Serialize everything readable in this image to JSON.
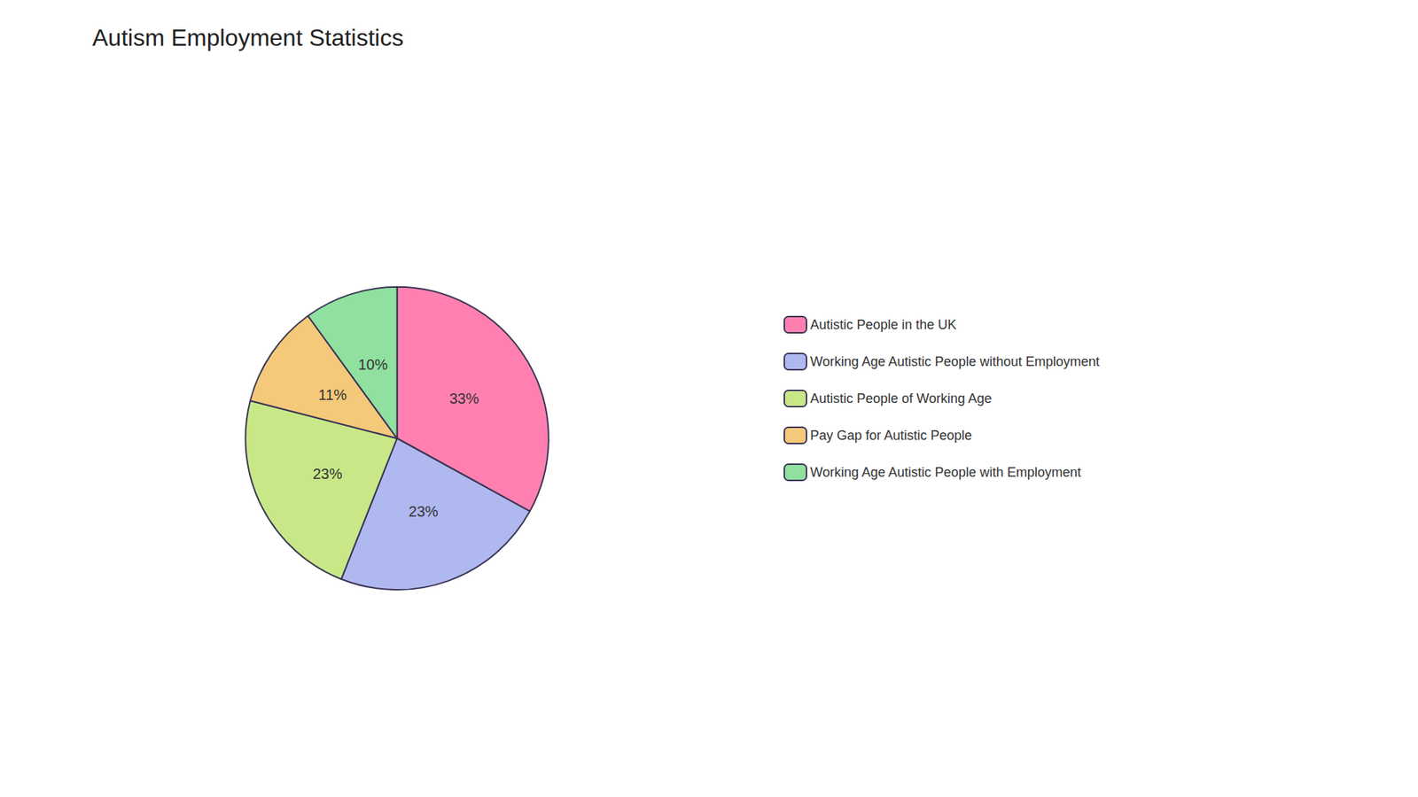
{
  "chart_data": {
    "type": "pie",
    "title": "Autism Employment Statistics",
    "categories": [
      "Autistic People in the UK",
      "Working Age Autistic People without Employment",
      "Autistic People of Working Age",
      "Pay Gap for Autistic People",
      "Working Age Autistic People with Employment"
    ],
    "values": [
      33,
      23,
      23,
      11,
      10
    ],
    "value_labels": [
      "33%",
      "23%",
      "23%",
      "11%",
      "10%"
    ],
    "colors": [
      "#FF80B0",
      "#B0B8F0",
      "#C8E888",
      "#F5C97A",
      "#90E0A0"
    ],
    "data_labels": true,
    "legend": "right"
  }
}
